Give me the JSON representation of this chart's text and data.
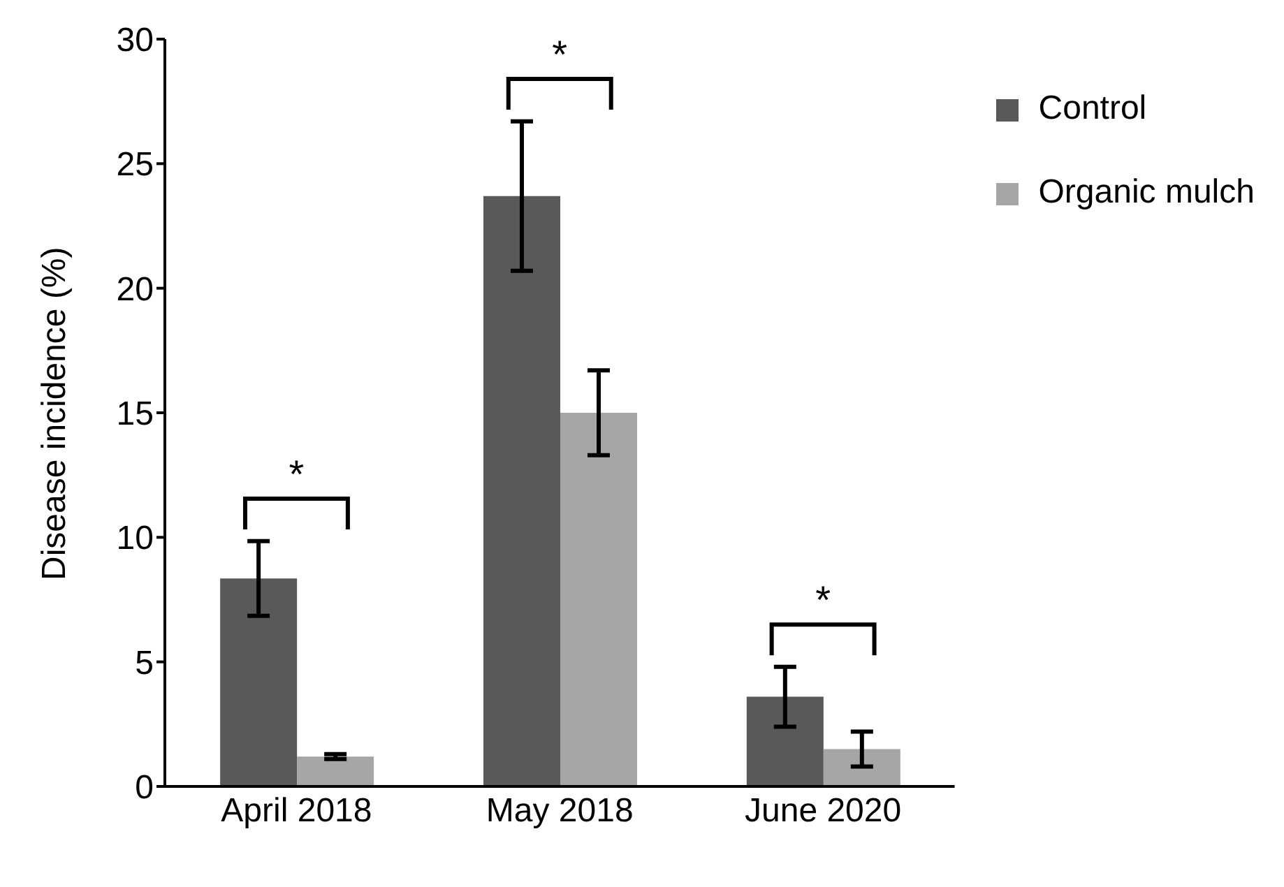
{
  "chart_data": {
    "type": "bar",
    "ylabel": "Disease incidence (%)",
    "categories": [
      "April 2018",
      "May 2018",
      "June 2020"
    ],
    "series": [
      {
        "name": "Control",
        "color": "#595959",
        "values": [
          8.35,
          23.7,
          3.6
        ],
        "errors": [
          1.5,
          3.0,
          1.2
        ]
      },
      {
        "name": "Organic mulch",
        "color": "#a6a6a6",
        "values": [
          1.2,
          15.0,
          1.5
        ],
        "errors": [
          0.1,
          1.7,
          0.7
        ]
      }
    ],
    "ylim": [
      0,
      30
    ],
    "yticks": [
      0,
      5,
      10,
      15,
      20,
      25,
      30
    ],
    "grid": false,
    "legend": "top right",
    "annotations": [
      "*",
      "*",
      "*"
    ]
  }
}
